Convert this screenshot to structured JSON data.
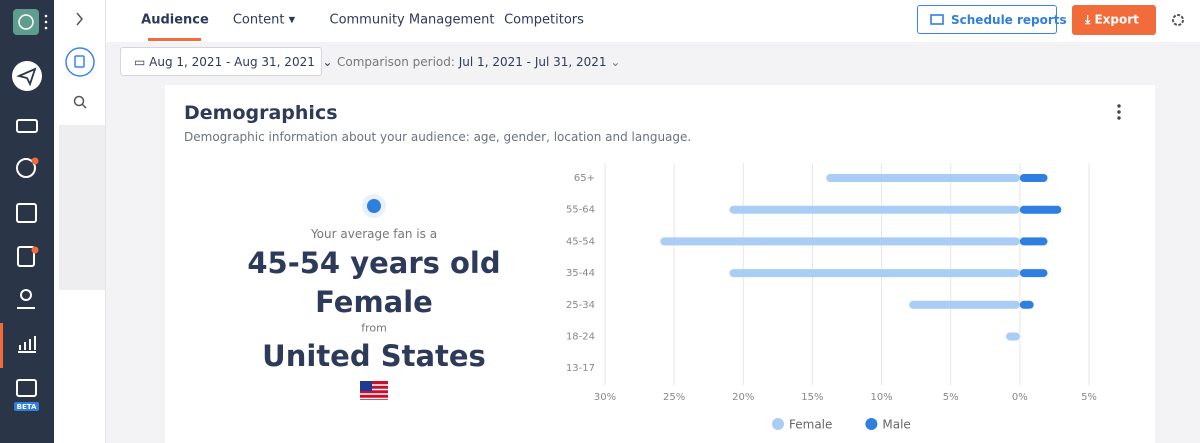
{
  "nav": {
    "tabs": [
      "Audience",
      "Content",
      "Community Management",
      "Competitors"
    ],
    "schedule": "Schedule reports",
    "export": "Export"
  },
  "filters": {
    "date_range": "Aug 1, 2021 - Aug 31, 2021",
    "comparison_label": "Comparison period:",
    "comparison_range": "Jul 1, 2021 - Jul 31, 2021"
  },
  "sidebar": {
    "badge": "BETA"
  },
  "card": {
    "title": "Demographics",
    "subtitle": "Demographic information about your audience: age, gender, location and language.",
    "summary": {
      "intro": "Your average fan is a",
      "age": "45-54 years old",
      "gender": "Female",
      "from": "from",
      "country": "United States"
    }
  },
  "chart_data": {
    "type": "bar",
    "orientation": "horizontal",
    "categories": [
      "65+",
      "55-64",
      "45-54",
      "35-44",
      "25-34",
      "18-24",
      "13-17"
    ],
    "series": [
      {
        "name": "Female",
        "color": "#a9cdf4",
        "values": [
          -14,
          -21,
          -26,
          -21,
          -8,
          -1,
          0
        ]
      },
      {
        "name": "Male",
        "color": "#2f7fe0",
        "values": [
          2,
          3,
          2,
          2,
          1,
          0,
          0
        ]
      }
    ],
    "xlim": [
      -30,
      5
    ],
    "xticks": [
      {
        "value": -30,
        "label": "30%"
      },
      {
        "value": -25,
        "label": "25%"
      },
      {
        "value": -20,
        "label": "20%"
      },
      {
        "value": -15,
        "label": "15%"
      },
      {
        "value": -10,
        "label": "10%"
      },
      {
        "value": -5,
        "label": "5%"
      },
      {
        "value": 0,
        "label": "0%"
      },
      {
        "value": 5,
        "label": "5%"
      }
    ],
    "grid": true,
    "legend": "bottom"
  }
}
